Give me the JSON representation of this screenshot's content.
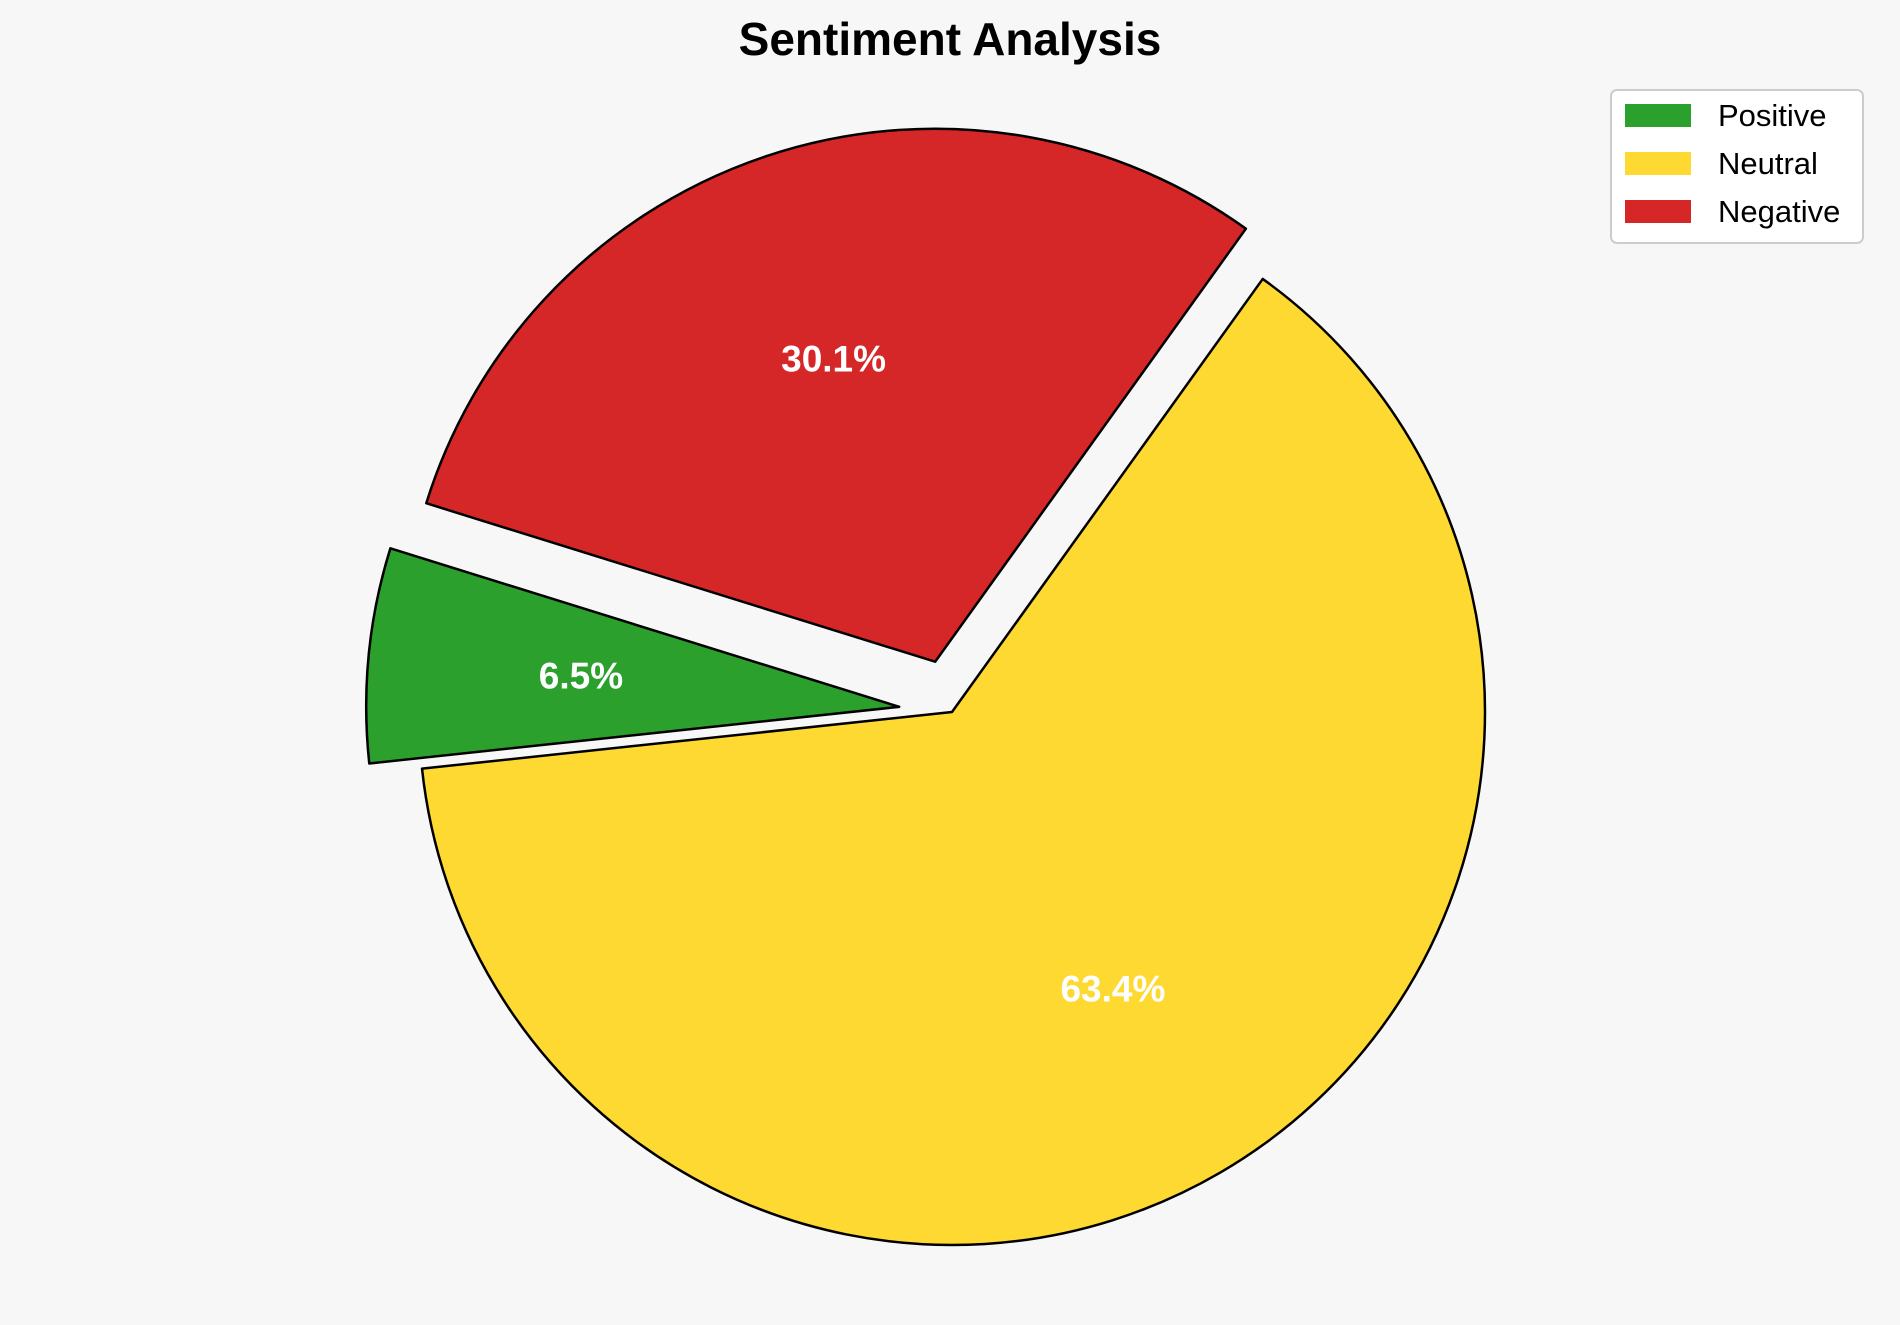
{
  "chart_data": {
    "type": "pie",
    "title": "Sentiment Analysis",
    "start_angle_deg": 162.7,
    "direction": "counterclockwise",
    "legend_position": "top-right",
    "slices": [
      {
        "label": "Positive",
        "value": 6.5,
        "pct_label": "6.5%",
        "color": "#2ca02c",
        "exploded": true
      },
      {
        "label": "Neutral",
        "value": 63.4,
        "pct_label": "63.4%",
        "color": "#fed931",
        "exploded": false
      },
      {
        "label": "Negative",
        "value": 30.1,
        "pct_label": "30.1%",
        "color": "#d62728",
        "exploded": true
      }
    ]
  }
}
